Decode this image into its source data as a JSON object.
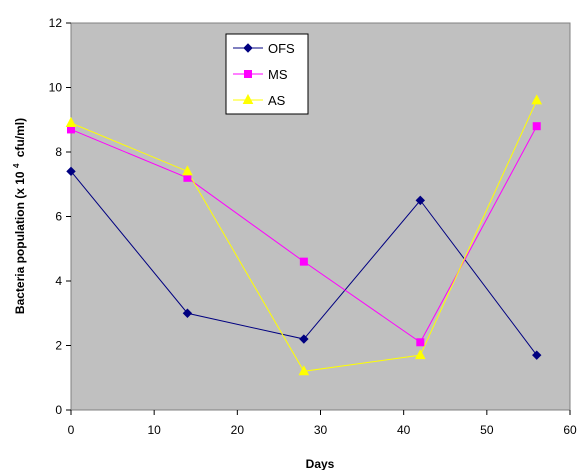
{
  "chart_data": {
    "type": "line",
    "title": "",
    "xlabel": "Days",
    "ylabel": {
      "main": "Bacteria population (x 10",
      "superscript": "4",
      "unit": "cfu/ml)"
    },
    "xlim": [
      0,
      60
    ],
    "ylim": [
      0,
      12
    ],
    "x_ticks": [
      "0",
      "10",
      "20",
      "30",
      "40",
      "50",
      "60"
    ],
    "y_ticks": [
      "0",
      "2",
      "4",
      "6",
      "8",
      "10",
      "12"
    ],
    "grid": false,
    "plot_background": "#c0c0c0",
    "legend_position": "top-center",
    "x": [
      0,
      14,
      28,
      42,
      56
    ],
    "series": [
      {
        "name": "OFS",
        "values": [
          7.4,
          3.0,
          2.2,
          6.5,
          1.7
        ],
        "color": "#000080",
        "marker": "diamond"
      },
      {
        "name": "MS",
        "values": [
          8.7,
          7.2,
          4.6,
          2.1,
          8.8
        ],
        "color": "#ff00ff",
        "marker": "square"
      },
      {
        "name": "AS",
        "values": [
          8.9,
          7.4,
          1.2,
          1.7,
          9.6
        ],
        "color": "#ffff00",
        "marker": "triangle"
      }
    ]
  }
}
